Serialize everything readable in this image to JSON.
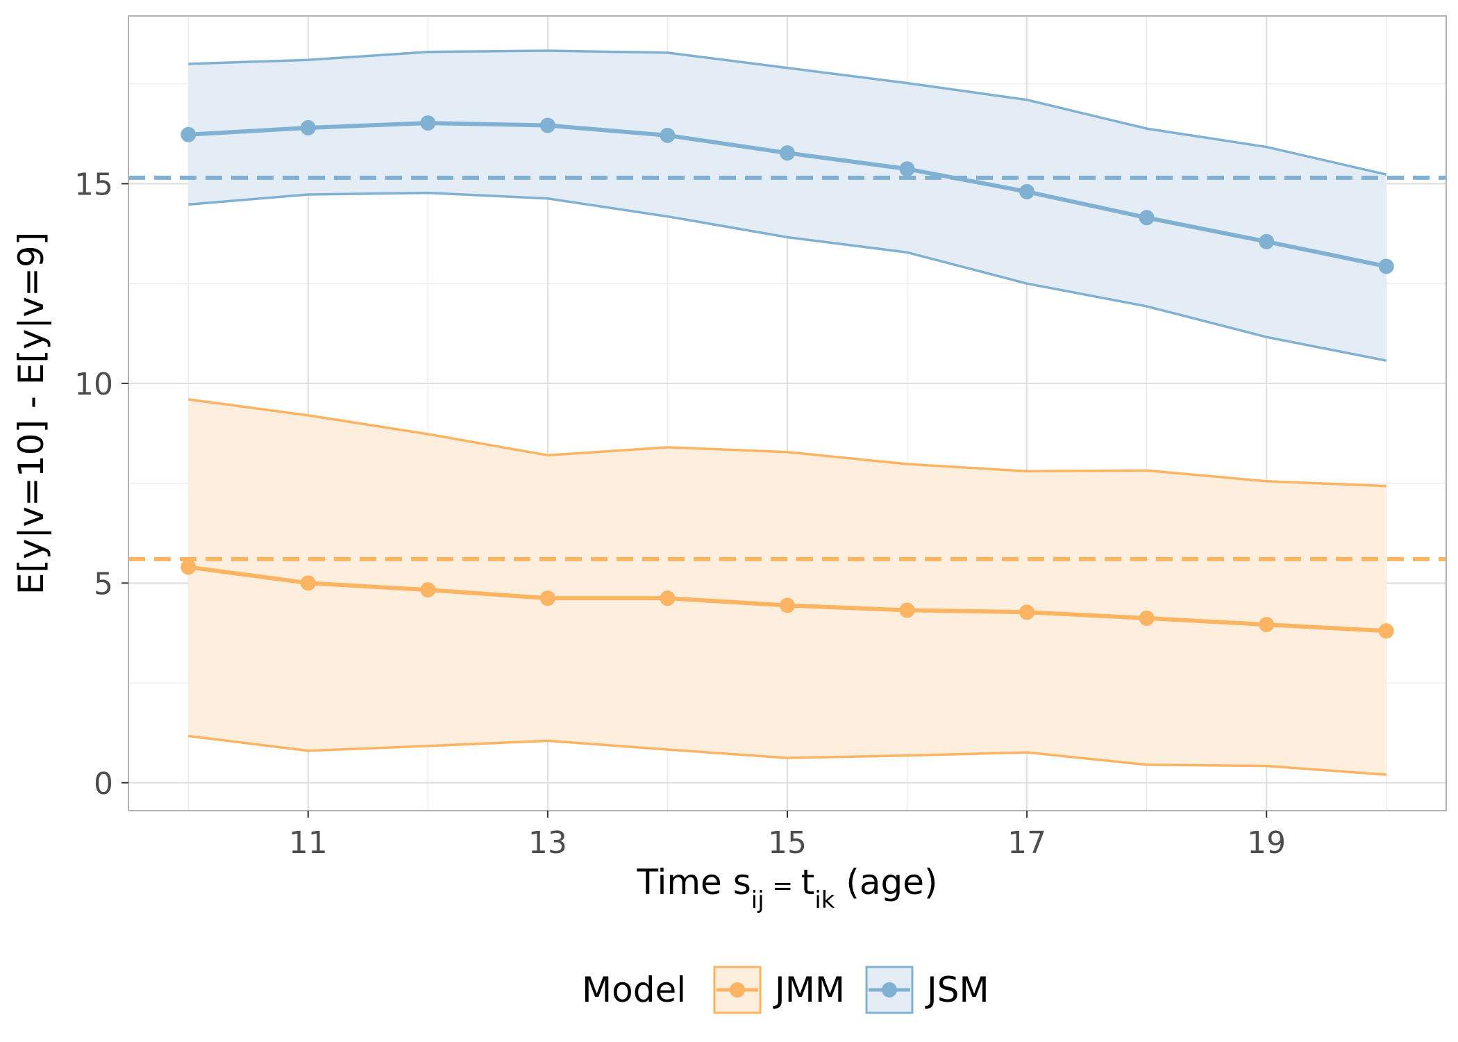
{
  "chart_data": {
    "type": "line",
    "xlabel": {
      "prefix": "Time ",
      "s": "s",
      "s_sub": "ij",
      "eq": " = ",
      "t": "t",
      "t_sub": "ik",
      "suffix": " (age)"
    },
    "ylabel": "E[y|v=10] - E[y|v=9]",
    "xlim": [
      9.5,
      20.5
    ],
    "ylim": [
      -0.7,
      19.2
    ],
    "x_ticks": [
      11,
      13,
      15,
      17,
      19
    ],
    "x_tick_labels": [
      "11",
      "13",
      "15",
      "17",
      "19"
    ],
    "x_minor_ticks": [
      10,
      12,
      14,
      16,
      18,
      20
    ],
    "y_ticks": [
      0,
      5,
      10,
      15
    ],
    "y_tick_labels": [
      "0",
      "5",
      "10",
      "15"
    ],
    "y_minor_ticks": [
      2.5,
      7.5,
      12.5,
      17.5
    ],
    "grid": true,
    "legend": {
      "title": "Model",
      "position": "bottom",
      "entries": [
        "JMM",
        "JSM"
      ]
    },
    "x": [
      10,
      11,
      12,
      13,
      14,
      15,
      16,
      17,
      18,
      19,
      20
    ],
    "series": [
      {
        "name": "JMM",
        "color": "#fdb462",
        "fill": "#fdeede",
        "values": [
          5.4,
          5.0,
          4.83,
          4.62,
          4.62,
          4.44,
          4.32,
          4.27,
          4.12,
          3.96,
          3.8
        ],
        "lower": [
          1.17,
          0.8,
          0.92,
          1.05,
          0.83,
          0.62,
          0.68,
          0.76,
          0.45,
          0.42,
          0.2
        ],
        "upper": [
          9.6,
          9.2,
          8.73,
          8.2,
          8.4,
          8.28,
          7.98,
          7.8,
          7.82,
          7.55,
          7.43
        ],
        "reference": 5.6
      },
      {
        "name": "JSM",
        "color": "#80b1d3",
        "fill": "#e4edf5",
        "values": [
          16.23,
          16.4,
          16.52,
          16.46,
          16.21,
          15.77,
          15.37,
          14.8,
          14.15,
          13.55,
          12.93
        ],
        "lower": [
          14.48,
          14.73,
          14.77,
          14.63,
          14.18,
          13.66,
          13.28,
          12.5,
          11.93,
          11.16,
          10.57
        ],
        "upper": [
          18.0,
          18.1,
          18.3,
          18.33,
          18.28,
          17.9,
          17.52,
          17.1,
          16.38,
          15.92,
          15.23
        ],
        "reference": 15.15
      }
    ]
  }
}
